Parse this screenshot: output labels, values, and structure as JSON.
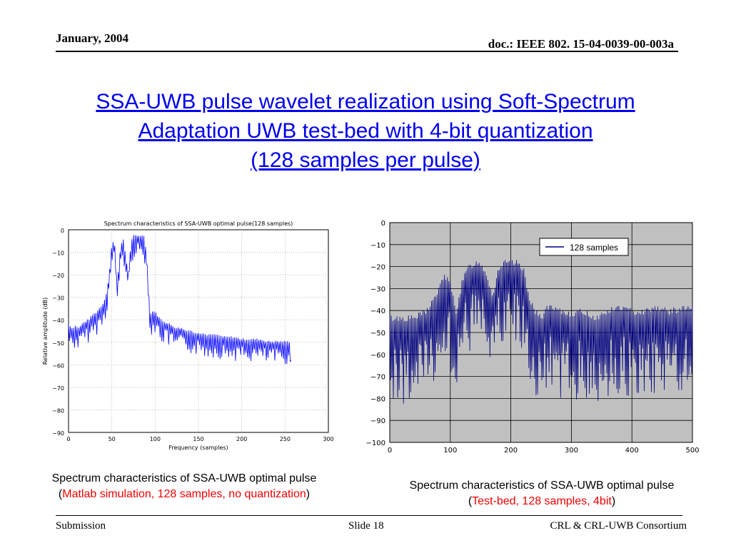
{
  "header": {
    "date": "January, 2004",
    "doc_id": "doc.: IEEE 802. 15-04-0039-00-003a"
  },
  "slide_title": {
    "line1": "SSA-UWB pulse wavelet realization using Soft-Spectrum",
    "line2": "Adaptation UWB test-bed with 4-bit quantization",
    "line3": "(128 samples per pulse)"
  },
  "left_caption": {
    "line1": "Spectrum characteristics of SSA-UWB optimal pulse",
    "open": "(",
    "detail": "Matlab simulation, 128 samples, no quantization",
    "close": ")"
  },
  "right_caption": {
    "line1": "Spectrum characteristics of SSA-UWB optimal pulse",
    "open": "(",
    "detail": "Test-bed, 128 samples, 4bit",
    "close": ")"
  },
  "footer": {
    "left": "Submission",
    "center": "Slide 18",
    "right": "CRL & CRL-UWB Consortium"
  },
  "colors": {
    "link_blue": "#0000ee",
    "highlight_red": "#ee0000",
    "matlab_line": "#0000ff",
    "testbed_line": "#000080",
    "testbed_plot_bg": "#c0c0c0"
  },
  "chart_data": [
    {
      "type": "line",
      "title": "Spectrum characteristics of SSA-UWB optimal pulse(128 samples)",
      "xlabel": "Frequency (samples)",
      "ylabel": "Relative amplitude (dB)",
      "xlim": [
        0,
        300
      ],
      "ylim": [
        -90,
        0
      ],
      "xticks": [
        "0",
        "50",
        "100",
        "150",
        "200",
        "250",
        "300"
      ],
      "yticks": [
        "0",
        "−10",
        "−20",
        "−30",
        "−40",
        "−50",
        "−60",
        "−70",
        "−80",
        "−90"
      ],
      "grid": true,
      "legend": "none",
      "series": [
        {
          "x": [
            0,
            4,
            8,
            12,
            16,
            20,
            24,
            28,
            32,
            36,
            40,
            44,
            47,
            50,
            53,
            56,
            60,
            63,
            66,
            69,
            72,
            75,
            78,
            81,
            84,
            87,
            90,
            93,
            95,
            98,
            102,
            106,
            110,
            115,
            120,
            125,
            130,
            135,
            140,
            145,
            150,
            160,
            170,
            180,
            190,
            200,
            210,
            220,
            230,
            240,
            250,
            255,
            257
          ],
          "y": [
            -42,
            -44,
            -43,
            -44,
            -42,
            -41,
            -40,
            -38,
            -37,
            -35,
            -33,
            -28,
            -20,
            -6,
            -5,
            -25,
            -8,
            -4,
            -12,
            -20,
            -6,
            -3,
            -3,
            -3,
            -3,
            -3,
            -10,
            -30,
            -38,
            -36,
            -38,
            -40,
            -41,
            -42,
            -43,
            -44,
            -44,
            -45,
            -45,
            -46,
            -46,
            -47,
            -47,
            -48,
            -48,
            -49,
            -49,
            -49,
            -50,
            -50,
            -50,
            -50,
            -58
          ]
        }
      ]
    },
    {
      "type": "line",
      "xlim": [
        0,
        500
      ],
      "ylim": [
        -100,
        0
      ],
      "xticks": [
        "0",
        "100",
        "200",
        "300",
        "400",
        "500"
      ],
      "yticks": [
        "0",
        "−10",
        "−20",
        "−30",
        "−40",
        "−50",
        "−60",
        "−70",
        "−80",
        "−90",
        "−100"
      ],
      "grid": true,
      "legend": "top-right",
      "series": [
        {
          "name": "128 samples",
          "x": [
            0,
            20,
            40,
            60,
            80,
            90,
            100,
            110,
            120,
            130,
            140,
            150,
            160,
            170,
            180,
            190,
            200,
            210,
            220,
            230,
            240,
            250,
            260,
            280,
            300,
            320,
            340,
            360,
            380,
            400,
            420,
            440,
            460,
            480,
            500
          ],
          "y": [
            -45,
            -45,
            -45,
            -42,
            -33,
            -25,
            -30,
            -42,
            -28,
            -22,
            -20,
            -20,
            -25,
            -35,
            -22,
            -20,
            -20,
            -20,
            -22,
            -35,
            -42,
            -45,
            -40,
            -42,
            -43,
            -42,
            -45,
            -42,
            -40,
            -42,
            -42,
            -40,
            -42,
            -41,
            -40
          ]
        }
      ]
    }
  ]
}
